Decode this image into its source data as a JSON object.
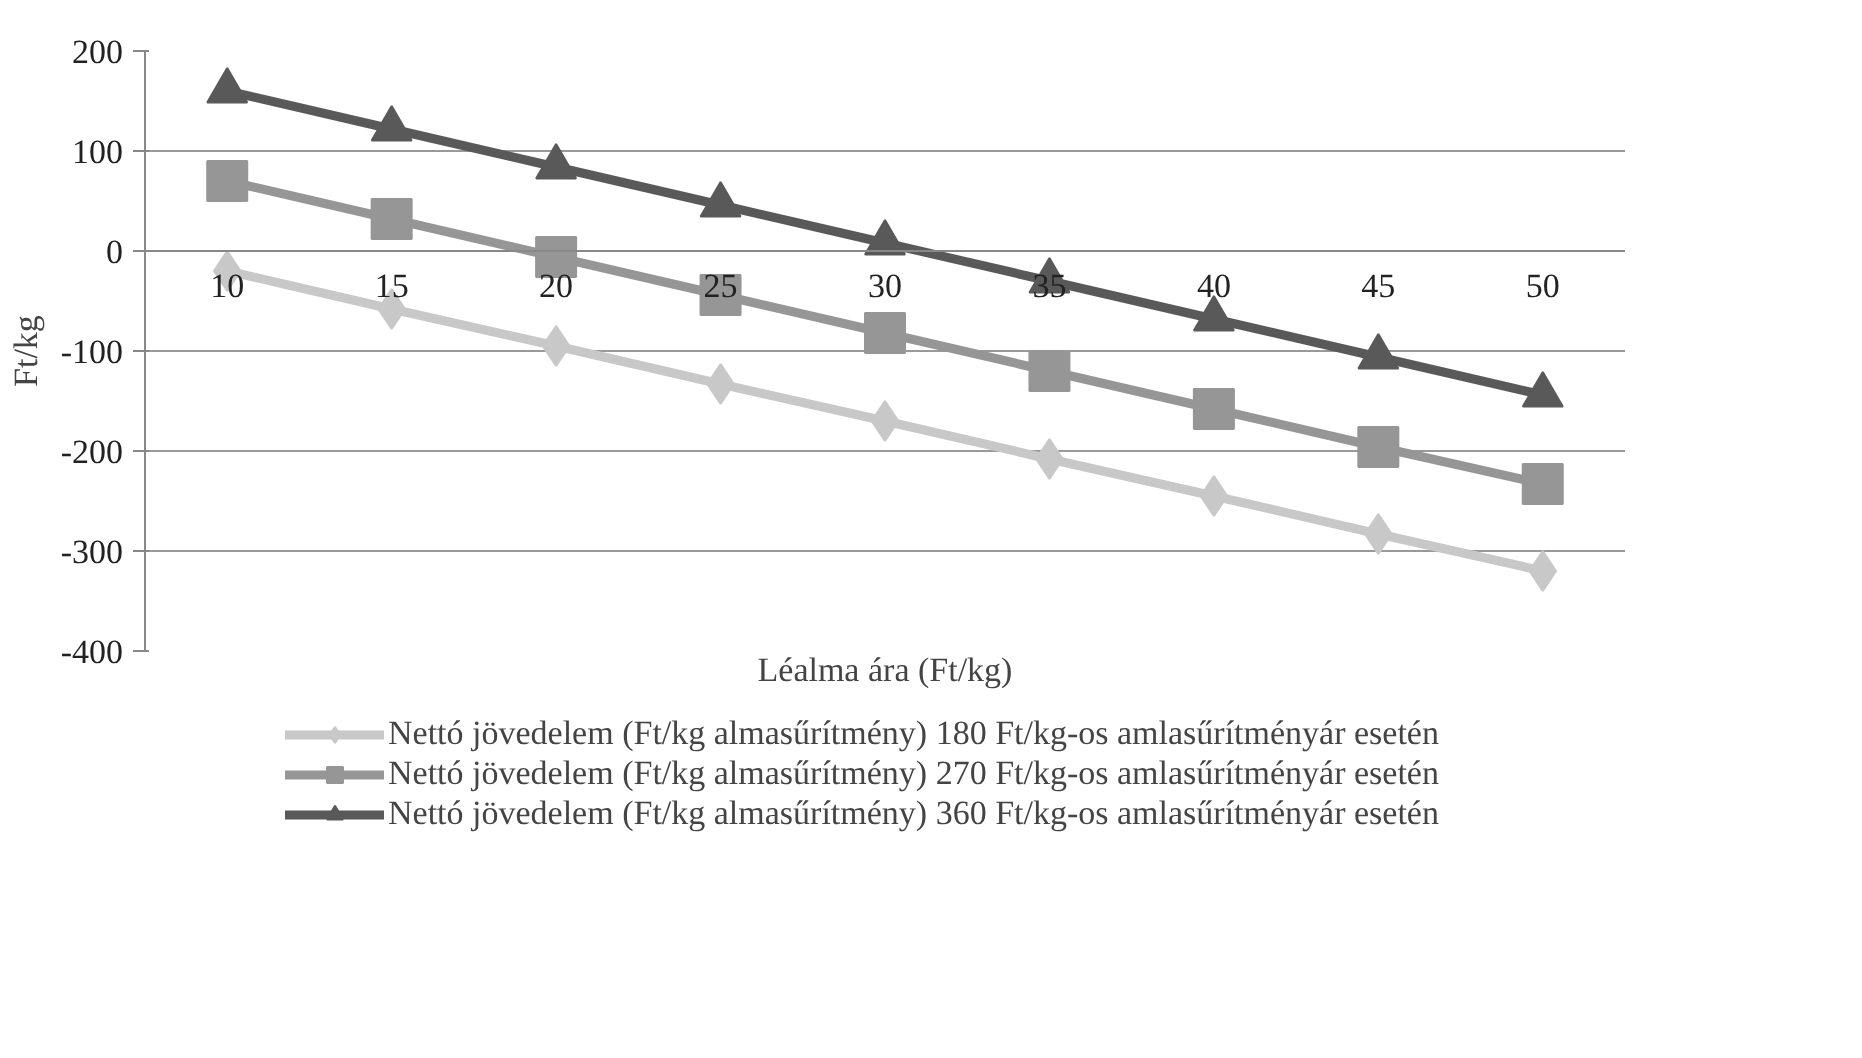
{
  "chart_data": {
    "type": "line",
    "xlabel": "Léalma ára (Ft/kg)",
    "ylabel": "Ft/kg",
    "categories": [
      "10",
      "15",
      "20",
      "25",
      "30",
      "35",
      "40",
      "45",
      "50"
    ],
    "ylim": [
      -400,
      200
    ],
    "yticks": [
      -400,
      -300,
      -200,
      -100,
      0,
      100,
      200
    ],
    "grid": "y",
    "legend": "bottom",
    "series": [
      {
        "name": "Nettó jövedelem (Ft/kg almasűrítmény) 180 Ft/kg-os amlasűrítményár esetén",
        "color": "#c8c8c8",
        "marker": "diamond",
        "values": [
          -20,
          -58,
          -95,
          -133,
          -170,
          -208,
          -245,
          -283,
          -320
        ]
      },
      {
        "name": "Nettó jövedelem (Ft/kg almasűrítmény) 270 Ft/kg-os amlasűrítményár esetén",
        "color": "#969696",
        "marker": "square",
        "values": [
          70,
          32,
          -6,
          -44,
          -82,
          -120,
          -158,
          -196,
          -233
        ]
      },
      {
        "name": "Nettó jövedelem (Ft/kg almasűrítmény) 360 Ft/kg-os amlasűrítményár esetén",
        "color": "#595959",
        "marker": "triangle",
        "values": [
          160,
          122,
          84,
          46,
          8,
          -30,
          -68,
          -106,
          -144
        ]
      }
    ]
  }
}
